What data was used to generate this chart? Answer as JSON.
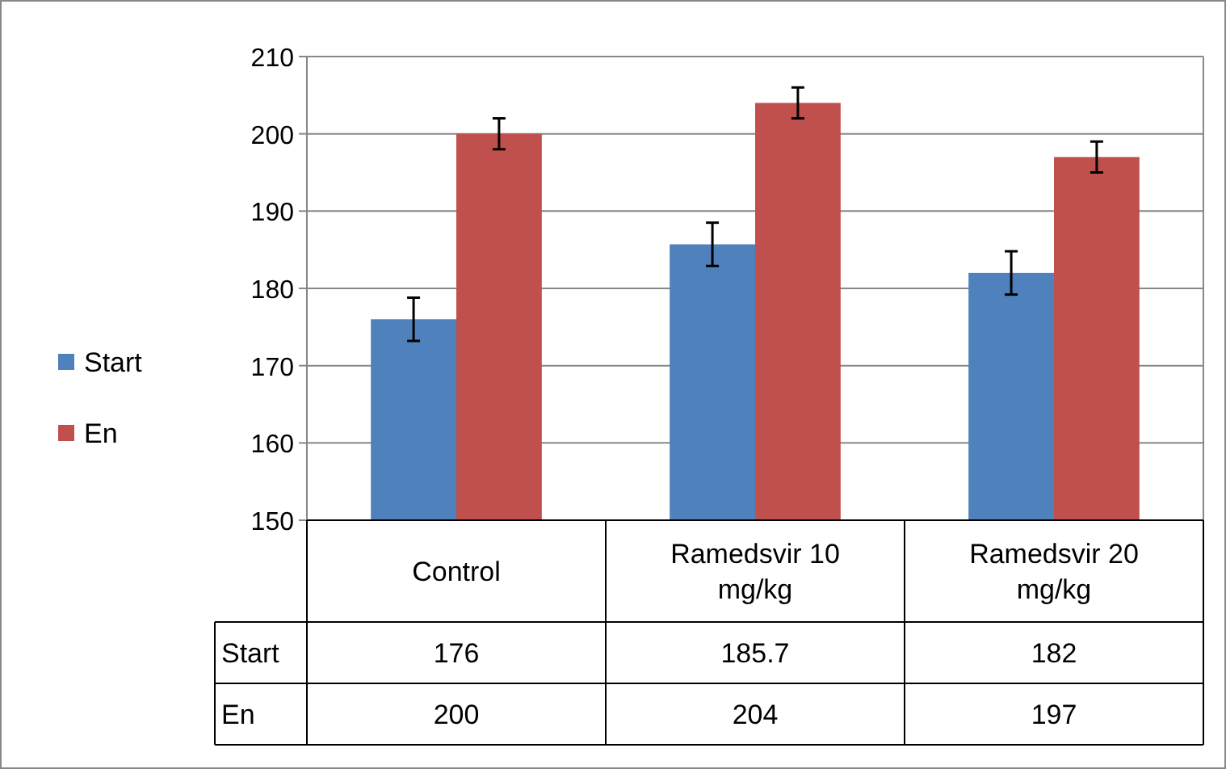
{
  "chart_data": {
    "type": "bar",
    "categories": [
      "Control",
      "Ramedsvir 10 mg/kg",
      "Ramedsvir 20 mg/kg"
    ],
    "series": [
      {
        "name": "Start",
        "color": "#4f81bd",
        "values": [
          176,
          185.7,
          182
        ],
        "errors": [
          2.8,
          2.8,
          2.8
        ]
      },
      {
        "name": "En",
        "color": "#c0504d",
        "values": [
          200,
          204,
          197
        ],
        "errors": [
          2,
          2,
          2
        ]
      }
    ],
    "ylim": [
      150,
      210
    ],
    "yticks": [
      150,
      160,
      170,
      180,
      190,
      200,
      210
    ],
    "grid": "y",
    "legend": "left",
    "data_labels": true
  }
}
